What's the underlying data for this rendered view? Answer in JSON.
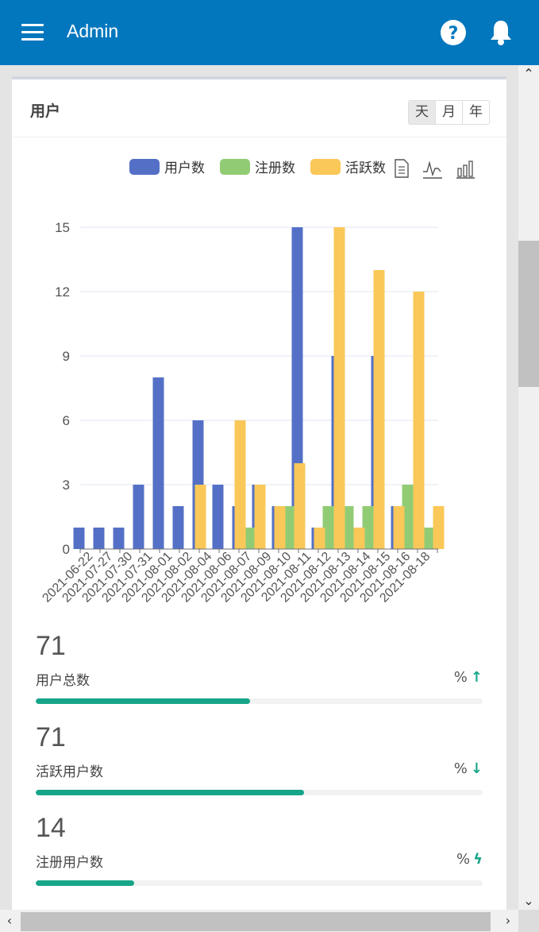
{
  "header": {
    "title": "Admin"
  },
  "card": {
    "title": "用户",
    "ranges": [
      "天",
      "月",
      "年"
    ]
  },
  "chart_data": {
    "type": "bar",
    "title": "",
    "xlabel": "",
    "ylabel": "",
    "ylim": [
      0,
      15
    ],
    "yticks": [
      0,
      3,
      6,
      9,
      12,
      15
    ],
    "legend_position": "top-right",
    "grid": true,
    "categories": [
      "2021-06-22",
      "2021-07-27",
      "2021-07-30",
      "2021-07-31",
      "2021-08-01",
      "2021-08-02",
      "2021-08-04",
      "2021-08-06",
      "2021-08-07",
      "2021-08-09",
      "2021-08-10",
      "2021-08-11",
      "2021-08-12",
      "2021-08-13",
      "2021-08-14",
      "2021-08-15",
      "2021-08-16",
      "2021-08-18"
    ],
    "series": [
      {
        "name": "用户数",
        "color": "#5470c6",
        "values": [
          1,
          1,
          1,
          3,
          8,
          2,
          6,
          3,
          2,
          3,
          2,
          15,
          1,
          9,
          1,
          9,
          2,
          2
        ]
      },
      {
        "name": "注册数",
        "color": "#91cc75",
        "values": [
          0,
          0,
          0,
          0,
          0,
          0,
          0,
          0,
          1,
          0,
          2,
          0,
          2,
          2,
          2,
          0,
          3,
          1
        ]
      },
      {
        "name": "活跃数",
        "color": "#fac858",
        "values": [
          0,
          0,
          0,
          0,
          0,
          3,
          0,
          6,
          3,
          2,
          4,
          1,
          15,
          1,
          13,
          2,
          12,
          2
        ]
      }
    ]
  },
  "toolbox": [
    "data-view-icon",
    "line-chart-icon",
    "bar-chart-icon"
  ],
  "stats": [
    {
      "value": "71",
      "label": "用户总数",
      "percent_text": "%",
      "arrow": "↑",
      "progress": 0.48
    },
    {
      "value": "71",
      "label": "活跃用户数",
      "percent_text": "%",
      "arrow": "↓",
      "progress": 0.6
    },
    {
      "value": "14",
      "label": "注册用户数",
      "percent_text": "%",
      "arrow": "ϟ",
      "progress": 0.22
    }
  ]
}
